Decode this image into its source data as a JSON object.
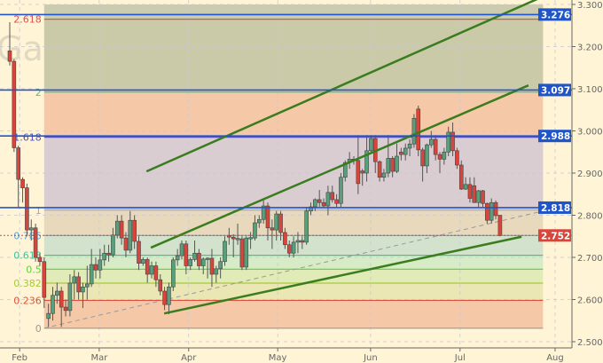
{
  "chart_data": {
    "type": "candlestick",
    "title": "Gas Futures",
    "ylim": [
      2.5,
      3.3
    ],
    "yticks": [
      "3.300",
      "3.200",
      "3.100",
      "3.000",
      "2.900",
      "2.800",
      "2.700",
      "2.600",
      "2.500"
    ],
    "xticks": [
      {
        "label": "Feb",
        "index": 2.3
      },
      {
        "label": "Mar",
        "index": 20.8
      },
      {
        "label": "Apr",
        "index": 41.6
      },
      {
        "label": "May",
        "index": 62.3
      },
      {
        "label": "Jun",
        "index": 83.9
      },
      {
        "label": "Jul",
        "index": 104.7
      },
      {
        "label": "Aug",
        "index": 126.8
      }
    ],
    "grid": true,
    "colors": {
      "up": "#5a9e7c",
      "down": "#d9453a",
      "background": "#fff5d6",
      "channel": "#3a7d1e",
      "level_line": "#2255cc",
      "last_price": "#d9453a"
    },
    "candles_ohlc": [
      [
        3.19,
        3.258,
        3.155,
        3.165
      ],
      [
        3.165,
        3.17,
        2.95,
        2.96
      ],
      [
        2.96,
        2.965,
        2.82,
        2.885
      ],
      [
        2.885,
        2.89,
        2.83,
        2.865
      ],
      [
        2.865,
        2.875,
        2.75,
        2.765
      ],
      [
        2.765,
        2.79,
        2.74,
        2.77
      ],
      [
        2.77,
        2.78,
        2.69,
        2.7
      ],
      [
        2.7,
        2.71,
        2.68,
        2.69
      ],
      [
        2.69,
        2.7,
        2.58,
        2.605
      ],
      [
        2.555,
        2.59,
        2.535,
        2.567
      ],
      [
        2.567,
        2.63,
        2.55,
        2.61
      ],
      [
        2.61,
        2.64,
        2.59,
        2.62
      ],
      [
        2.62,
        2.63,
        2.535,
        2.582
      ],
      [
        2.582,
        2.6,
        2.56,
        2.574
      ],
      [
        2.574,
        2.66,
        2.56,
        2.639
      ],
      [
        2.639,
        2.67,
        2.6,
        2.654
      ],
      [
        2.654,
        2.665,
        2.6,
        2.618
      ],
      [
        2.618,
        2.64,
        2.58,
        2.63
      ],
      [
        2.63,
        2.68,
        2.6,
        2.637
      ],
      [
        2.637,
        2.72,
        2.63,
        2.683
      ],
      [
        2.683,
        2.7,
        2.65,
        2.67
      ],
      [
        2.67,
        2.72,
        2.65,
        2.694
      ],
      [
        2.694,
        2.73,
        2.68,
        2.71
      ],
      [
        2.71,
        2.73,
        2.69,
        2.706
      ],
      [
        2.706,
        2.77,
        2.7,
        2.753
      ],
      [
        2.753,
        2.8,
        2.745,
        2.786
      ],
      [
        2.786,
        2.8,
        2.73,
        2.746
      ],
      [
        2.746,
        2.76,
        2.7,
        2.717
      ],
      [
        2.717,
        2.81,
        2.71,
        2.788
      ],
      [
        2.788,
        2.8,
        2.72,
        2.738
      ],
      [
        2.738,
        2.75,
        2.67,
        2.686
      ],
      [
        2.686,
        2.7,
        2.68,
        2.695
      ],
      [
        2.695,
        2.7,
        2.64,
        2.66
      ],
      [
        2.66,
        2.69,
        2.65,
        2.68
      ],
      [
        2.68,
        2.69,
        2.63,
        2.647
      ],
      [
        2.647,
        2.66,
        2.61,
        2.62
      ],
      [
        2.62,
        2.63,
        2.575,
        2.588
      ],
      [
        2.588,
        2.64,
        2.565,
        2.63
      ],
      [
        2.63,
        2.7,
        2.62,
        2.694
      ],
      [
        2.694,
        2.72,
        2.68,
        2.704
      ],
      [
        2.704,
        2.74,
        2.695,
        2.732
      ],
      [
        2.732,
        2.74,
        2.66,
        2.68
      ],
      [
        2.68,
        2.7,
        2.67,
        2.695
      ],
      [
        2.695,
        2.74,
        2.69,
        2.71
      ],
      [
        2.71,
        2.72,
        2.67,
        2.68
      ],
      [
        2.68,
        2.7,
        2.66,
        2.696
      ],
      [
        2.696,
        2.7,
        2.65,
        2.698
      ],
      [
        2.698,
        2.72,
        2.63,
        2.66
      ],
      [
        2.66,
        2.68,
        2.64,
        2.673
      ],
      [
        2.673,
        2.7,
        2.65,
        2.69
      ],
      [
        2.69,
        2.75,
        2.68,
        2.738
      ],
      [
        2.752,
        2.77,
        2.73,
        2.748
      ],
      [
        2.748,
        2.755,
        2.7,
        2.744
      ],
      [
        2.744,
        2.78,
        2.73,
        2.745
      ],
      [
        2.744,
        2.75,
        2.67,
        2.677
      ],
      [
        2.677,
        2.75,
        2.67,
        2.746
      ],
      [
        2.746,
        2.76,
        2.72,
        2.747
      ],
      [
        2.746,
        2.8,
        2.74,
        2.782
      ],
      [
        2.782,
        2.8,
        2.77,
        2.79
      ],
      [
        2.79,
        2.84,
        2.78,
        2.822
      ],
      [
        2.822,
        2.83,
        2.74,
        2.77
      ],
      [
        2.77,
        2.79,
        2.72,
        2.765
      ],
      [
        2.765,
        2.81,
        2.74,
        2.803
      ],
      [
        2.803,
        2.81,
        2.74,
        2.759
      ],
      [
        2.759,
        2.77,
        2.72,
        2.73
      ],
      [
        2.73,
        2.74,
        2.7,
        2.71
      ],
      [
        2.71,
        2.75,
        2.7,
        2.736
      ],
      [
        2.736,
        2.76,
        2.71,
        2.74
      ],
      [
        2.74,
        2.75,
        2.72,
        2.736
      ],
      [
        2.736,
        2.82,
        2.73,
        2.81
      ],
      [
        2.81,
        2.83,
        2.8,
        2.82
      ],
      [
        2.82,
        2.84,
        2.81,
        2.837
      ],
      [
        2.837,
        2.86,
        2.82,
        2.83
      ],
      [
        2.83,
        2.84,
        2.82,
        2.822
      ],
      [
        2.822,
        2.87,
        2.8,
        2.854
      ],
      [
        2.854,
        2.87,
        2.83,
        2.837
      ],
      [
        2.837,
        2.85,
        2.82,
        2.828
      ],
      [
        2.828,
        2.9,
        2.82,
        2.89
      ],
      [
        2.89,
        2.93,
        2.88,
        2.925
      ],
      [
        2.925,
        2.95,
        2.91,
        2.933
      ],
      [
        2.933,
        2.94,
        2.92,
        2.93
      ],
      [
        2.93,
        2.99,
        2.85,
        2.875
      ],
      [
        2.905,
        2.91,
        2.87,
        2.9
      ],
      [
        2.9,
        2.99,
        2.88,
        2.953
      ],
      [
        2.953,
        2.99,
        2.95,
        2.982
      ],
      [
        2.982,
        2.99,
        2.9,
        2.927
      ],
      [
        2.927,
        2.93,
        2.88,
        2.89
      ],
      [
        2.89,
        2.91,
        2.88,
        2.9
      ],
      [
        2.9,
        2.99,
        2.89,
        2.935
      ],
      [
        2.935,
        2.94,
        2.89,
        2.904
      ],
      [
        2.904,
        2.97,
        2.9,
        2.94
      ],
      [
        2.95,
        2.96,
        2.93,
        2.944
      ],
      [
        2.944,
        2.97,
        2.93,
        2.959
      ],
      [
        2.959,
        2.98,
        2.94,
        2.969
      ],
      [
        2.969,
        3.04,
        2.96,
        3.03
      ],
      [
        3.052,
        3.06,
        2.94,
        2.955
      ],
      [
        2.955,
        2.96,
        2.88,
        2.917
      ],
      [
        2.917,
        2.97,
        2.9,
        2.967
      ],
      [
        2.967,
        3.0,
        2.96,
        2.98
      ],
      [
        2.98,
        2.99,
        2.93,
        2.944
      ],
      [
        2.944,
        2.95,
        2.9,
        2.933
      ],
      [
        2.933,
        2.96,
        2.92,
        2.95
      ],
      [
        2.95,
        3.01,
        2.94,
        2.997
      ],
      [
        2.997,
        3.02,
        2.94,
        2.953
      ],
      [
        2.953,
        2.96,
        2.91,
        2.919
      ],
      [
        2.919,
        2.93,
        2.86,
        2.862
      ],
      [
        2.862,
        2.89,
        2.86,
        2.873
      ],
      [
        2.873,
        2.89,
        2.83,
        2.84
      ],
      [
        2.87,
        2.89,
        2.83,
        2.83
      ],
      [
        2.83,
        2.86,
        2.82,
        2.858
      ],
      [
        2.858,
        2.86,
        2.82,
        2.828
      ],
      [
        2.828,
        2.83,
        2.78,
        2.788
      ],
      [
        2.788,
        2.84,
        2.78,
        2.83
      ],
      [
        2.83,
        2.835,
        2.79,
        2.799
      ],
      [
        2.8,
        2.8,
        2.75,
        2.752
      ]
    ],
    "fib_levels": [
      {
        "label": "0",
        "price": 2.532,
        "color": "#999999",
        "fill": "#f5c9a8"
      },
      {
        "label": "0.236",
        "price": 2.598,
        "color": "#e0503c",
        "fill": "#ebe7b4"
      },
      {
        "label": "0.382",
        "price": 2.639,
        "color": "#a8c83c",
        "fill": "#e1ebb8"
      },
      {
        "label": "0.5",
        "price": 2.672,
        "color": "#5ccf40",
        "fill": "#d6ebc6"
      },
      {
        "label": "0.618",
        "price": 2.705,
        "color": "#40c49a",
        "fill": "#d3e2cd"
      },
      {
        "label": "0.786",
        "price": 2.752,
        "color": "#5aa7d8",
        "fill": "#e9d9bc"
      },
      {
        "label": "1",
        "price": 2.812,
        "color": "#aaaaaa",
        "fill": "#d9cdd2"
      },
      {
        "label": "1.618",
        "price": 2.985,
        "color": "#5050c8",
        "fill": "#f5c9a8"
      },
      {
        "label": "2",
        "price": 3.092,
        "color": "#4fc08d",
        "fill": "#cacaa9"
      },
      {
        "label": "2.618",
        "price": 3.265,
        "color": "#d9534f",
        "fill": "#cbcbb0"
      }
    ],
    "fib_top_price": 3.3,
    "fib_index_range": [
      8,
      124
    ],
    "horizontal_levels": [
      "3.276",
      "3.097",
      "2.988",
      "2.818"
    ],
    "last_price": "2.752",
    "channel_lines": [
      [
        [
          31.8,
          2.904
        ],
        [
          122.7,
          3.313
        ]
      ],
      [
        [
          32.8,
          2.723
        ],
        [
          120.6,
          3.108
        ]
      ],
      [
        [
          35.9,
          2.567
        ],
        [
          119,
          2.749
        ]
      ]
    ],
    "trend_line_dashed": [
      [
        8,
        2.532
      ],
      [
        124,
        2.81
      ]
    ]
  }
}
